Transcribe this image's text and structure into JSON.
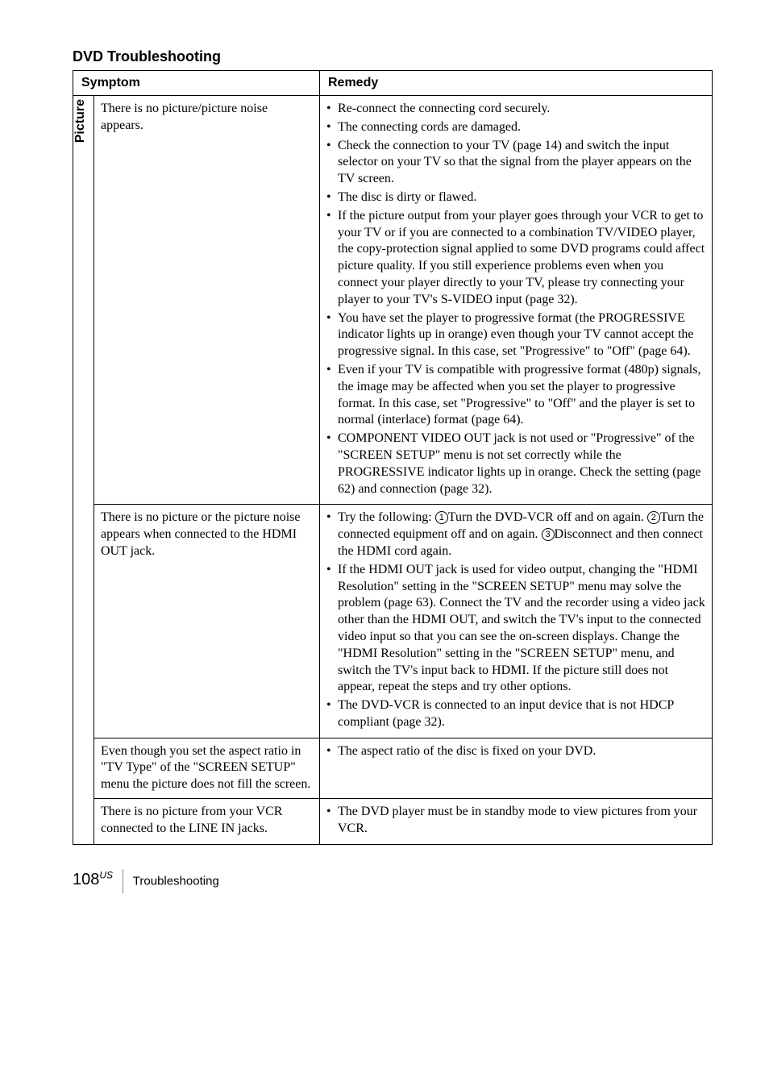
{
  "section_title": "DVD Troubleshooting",
  "header": {
    "symptom": "Symptom",
    "remedy": "Remedy"
  },
  "sidebar_label": "Picture",
  "rows": [
    {
      "symptom": "There is no picture/picture noise appears.",
      "remedy": [
        "Re-connect the connecting cord securely.",
        "The connecting cords are damaged.",
        "Check the connection to your TV (page 14) and switch the input selector on your TV so that the signal from the player appears on the TV screen.",
        "The disc is dirty or flawed.",
        "If the picture output from your player goes through your VCR to get to your TV or if you are connected to a combination TV/VIDEO player, the copy-protection signal applied to some DVD programs could affect picture quality. If you still experience problems even when you connect your player directly to your TV, please try connecting your player to your TV's S-VIDEO input (page 32).",
        "You have set the player to progressive format (the PROGRESSIVE indicator lights up in orange) even though your TV cannot accept the progressive signal. In this case, set \"Progressive\" to \"Off\" (page 64).",
        "Even if your TV is compatible with progressive format (480p) signals, the image may be affected when you set the player to progressive format. In this case, set \"Progressive\" to \"Off\" and the player is set to normal (interlace) format (page 64).",
        "COMPONENT VIDEO OUT jack is not used or \"Progressive\" of the \"SCREEN SETUP\" menu is not set correctly while the PROGRESSIVE indicator lights up in orange. Check the setting (page 62) and connection (page 32)."
      ]
    },
    {
      "symptom": "There is no picture or the picture noise appears when connected to the HDMI OUT jack.",
      "remedy_special": {
        "item1_pre": "Try the following: ",
        "step1": "Turn the DVD-VCR off and on again. ",
        "step2": "Turn the connected equipment off and on again. ",
        "step3": "Disconnect and then connect the HDMI cord again.",
        "item2": "If the HDMI OUT jack is used for video output, changing the \"HDMI Resolution\" setting in the \"SCREEN SETUP\" menu may solve the problem (page 63). Connect the TV and the recorder using a video jack other than the HDMI OUT, and switch the TV's input to the connected video input so that you can see the on-screen displays.  Change the \"HDMI Resolution\" setting in the \"SCREEN SETUP\" menu, and switch the TV's input back to HDMI. If the picture still does not appear, repeat the steps and try other options.",
        "item3": "The DVD-VCR is connected to an input device that is not HDCP compliant (page 32)."
      }
    },
    {
      "symptom": "Even though you set the aspect ratio in \"TV Type\" of the \"SCREEN SETUP\" menu the picture does not fill the screen.",
      "remedy": [
        "The aspect ratio of the disc is fixed on your DVD."
      ]
    },
    {
      "symptom": "There is no picture from your VCR connected to the LINE IN jacks.",
      "remedy": [
        "The DVD player must be in standby mode to view pictures from your VCR."
      ]
    }
  ],
  "footer": {
    "page": "108",
    "sup": "US",
    "label": "Troubleshooting"
  }
}
